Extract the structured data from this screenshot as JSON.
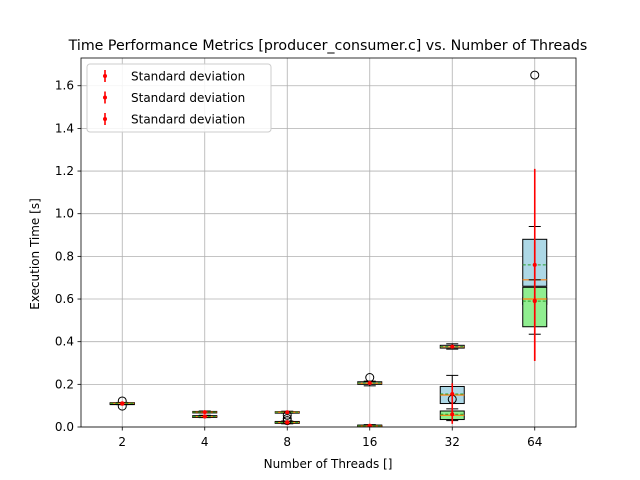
{
  "chart_data": {
    "type": "box",
    "title": "Time Performance Metrics [producer_consumer.c] vs. Number of Threads",
    "xlabel": "Number of Threads []",
    "ylabel": "Execution Time [s]",
    "categories": [
      "2",
      "4",
      "8",
      "16",
      "32",
      "64"
    ],
    "ylim": [
      0,
      1.73
    ],
    "yticks": [
      0.0,
      0.2,
      0.4,
      0.6,
      0.8,
      1.0,
      1.2,
      1.4,
      1.6
    ],
    "ytick_labels": [
      "0.0",
      "0.2",
      "0.4",
      "0.6",
      "0.8",
      "1.0",
      "1.2",
      "1.4",
      "1.6"
    ],
    "grid": true,
    "legend_position": "top-left",
    "legend": [
      "Standard deviation",
      "Standard deviation",
      "Standard deviation"
    ],
    "colors": {
      "series_a_fill": "#add8e6",
      "series_b_fill": "#ffffff",
      "series_c_fill": "#90ee90",
      "median": "#ff7f0e",
      "mean": "#2ca02c",
      "errorbar": "#ff0000",
      "grid": "#b0b0b0"
    },
    "series": [
      {
        "fill_key": "series_a_fill",
        "boxes": [
          {
            "q1": 0.108,
            "median": 0.111,
            "q3": 0.114,
            "mean": 0.111,
            "whislo": 0.107,
            "whishi": 0.115,
            "fliers": [
              0.122
            ],
            "std": 0.003
          },
          {
            "q1": 0.068,
            "median": 0.07,
            "q3": 0.073,
            "mean": 0.07,
            "whislo": 0.066,
            "whishi": 0.075,
            "fliers": [],
            "std": 0.003
          },
          {
            "q1": 0.067,
            "median": 0.069,
            "q3": 0.072,
            "mean": 0.069,
            "whislo": 0.065,
            "whishi": 0.074,
            "fliers": [],
            "std": 0.003
          },
          {
            "q1": 0.2,
            "median": 0.205,
            "q3": 0.212,
            "mean": 0.206,
            "whislo": 0.193,
            "whishi": 0.215,
            "fliers": [
              0.232
            ],
            "std": 0.008
          },
          {
            "q1": 0.11,
            "median": 0.15,
            "q3": 0.19,
            "mean": 0.155,
            "whislo": 0.04,
            "whishi": 0.242,
            "fliers": [],
            "std": 0.05
          },
          {
            "q1": 0.66,
            "median": 0.69,
            "q3": 0.88,
            "mean": 0.76,
            "whislo": 0.58,
            "whishi": 0.94,
            "fliers": [
              1.65
            ],
            "std": 0.45
          }
        ]
      },
      {
        "fill_key": "series_b_fill",
        "boxes": [
          {
            "q1": 0.106,
            "median": 0.109,
            "q3": 0.112,
            "mean": 0.109,
            "whislo": 0.105,
            "whishi": 0.113,
            "fliers": [
              0.098
            ],
            "std": 0.003
          },
          {
            "q1": 0.047,
            "median": 0.05,
            "q3": 0.053,
            "mean": 0.05,
            "whislo": 0.045,
            "whishi": 0.055,
            "fliers": [],
            "std": 0.003
          },
          {
            "q1": 0.02,
            "median": 0.023,
            "q3": 0.026,
            "mean": 0.023,
            "whislo": 0.017,
            "whishi": 0.028,
            "fliers": [
              0.055,
              0.04
            ],
            "std": 0.004
          },
          {
            "q1": 0.004,
            "median": 0.006,
            "q3": 0.009,
            "mean": 0.006,
            "whislo": 0.002,
            "whishi": 0.011,
            "fliers": [],
            "std": 0.002
          },
          {
            "q1": 0.37,
            "median": 0.376,
            "q3": 0.383,
            "mean": 0.377,
            "whislo": 0.365,
            "whishi": 0.39,
            "fliers": [],
            "std": 0.008
          },
          {
            "q1": 0.575,
            "median": 0.59,
            "q3": 0.605,
            "mean": 0.592,
            "whislo": 0.565,
            "whishi": 0.615,
            "fliers": [],
            "std": 0.02
          }
        ]
      },
      {
        "fill_key": "series_c_fill",
        "boxes": [
          {
            "q1": 0.109,
            "median": 0.111,
            "q3": 0.113,
            "mean": 0.111,
            "whislo": 0.107,
            "whishi": 0.115,
            "fliers": [],
            "std": 0.002
          },
          {
            "q1": 0.046,
            "median": 0.049,
            "q3": 0.052,
            "mean": 0.049,
            "whislo": 0.044,
            "whishi": 0.054,
            "fliers": [],
            "std": 0.003
          },
          {
            "q1": 0.018,
            "median": 0.021,
            "q3": 0.024,
            "mean": 0.021,
            "whislo": 0.015,
            "whishi": 0.026,
            "fliers": [
              0.03
            ],
            "std": 0.004
          },
          {
            "q1": 0.003,
            "median": 0.005,
            "q3": 0.008,
            "mean": 0.005,
            "whislo": 0.001,
            "whishi": 0.01,
            "fliers": [],
            "std": 0.002
          },
          {
            "q1": 0.035,
            "median": 0.055,
            "q3": 0.075,
            "mean": 0.06,
            "whislo": 0.03,
            "whishi": 0.085,
            "fliers": [
              0.13
            ],
            "std": 0.045
          },
          {
            "q1": 0.47,
            "median": 0.6,
            "q3": 0.655,
            "mean": 0.59,
            "whislo": 0.435,
            "whishi": 0.69,
            "fliers": [],
            "std": 0.28
          }
        ]
      }
    ]
  }
}
